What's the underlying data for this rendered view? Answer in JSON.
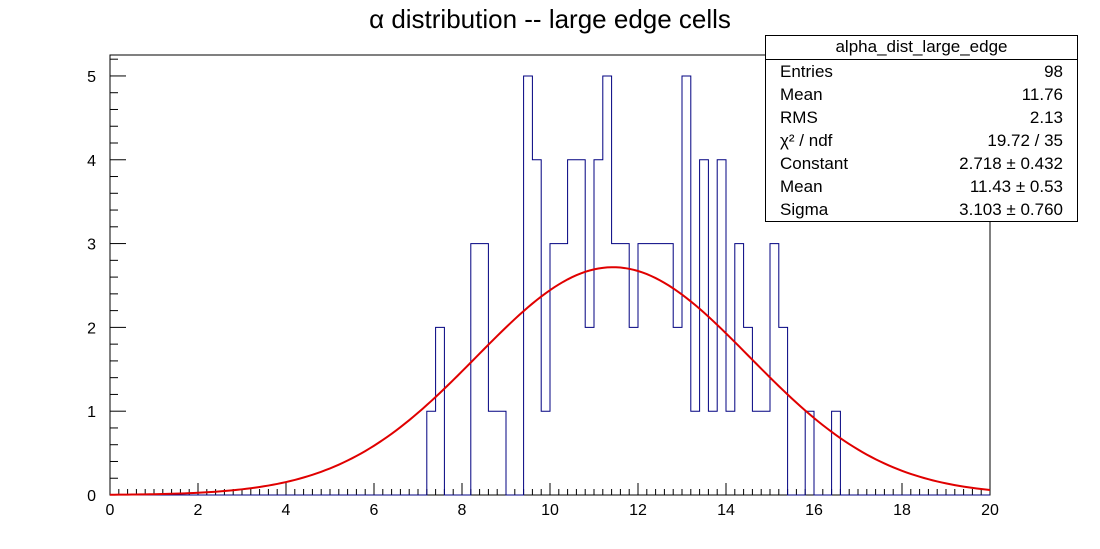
{
  "title": "α distribution -- large edge cells",
  "colors": {
    "histogram": "#000080",
    "fit": "#e00000",
    "axes": "#000000"
  },
  "statbox": {
    "header": "alpha_dist_large_edge",
    "rows": [
      {
        "label": "Entries",
        "value": "98"
      },
      {
        "label": "Mean",
        "value": "11.76"
      },
      {
        "label": "RMS",
        "value": "2.13"
      },
      {
        "label": "χ² / ndf",
        "value": "19.72 / 35"
      },
      {
        "label": "Constant",
        "value": "2.718 ± 0.432"
      },
      {
        "label": "Mean",
        "value": "11.43 ± 0.53"
      },
      {
        "label": "Sigma",
        "value": "3.103 ± 0.760"
      }
    ]
  },
  "chart_data": {
    "type": "bar",
    "title": "α distribution -- large edge cells",
    "xlim": [
      0,
      20
    ],
    "ylim": [
      0,
      5.25
    ],
    "bin_width": 0.2,
    "x_ticks": [
      0,
      2,
      4,
      6,
      8,
      10,
      12,
      14,
      16,
      18,
      20
    ],
    "y_ticks": [
      0,
      1,
      2,
      3,
      4,
      5
    ],
    "histogram": {
      "bin_low_edges": [
        7.2,
        7.4,
        8.2,
        8.4,
        8.6,
        8.8,
        9.4,
        9.6,
        9.8,
        10.0,
        10.2,
        10.4,
        10.6,
        10.8,
        11.0,
        11.2,
        11.4,
        11.6,
        11.8,
        12.0,
        12.2,
        12.4,
        12.6,
        12.8,
        13.0,
        13.2,
        13.4,
        13.6,
        13.8,
        14.0,
        14.2,
        14.4,
        14.6,
        14.8,
        15.0,
        15.2,
        15.4,
        15.8,
        16.4
      ],
      "counts": [
        1,
        2,
        3,
        3,
        1,
        1,
        5,
        4,
        1,
        3,
        3,
        4,
        4,
        2,
        4,
        5,
        3,
        3,
        2,
        3,
        3,
        3,
        3,
        2,
        5,
        1,
        4,
        1,
        4,
        1,
        3,
        2,
        1,
        1,
        3,
        2,
        0,
        1,
        1
      ]
    },
    "fit": {
      "function": "gaus",
      "constant": 2.718,
      "mean": 11.43,
      "sigma": 3.103,
      "range": [
        0,
        20
      ]
    },
    "grid": false,
    "legend_placement": "top-right"
  }
}
